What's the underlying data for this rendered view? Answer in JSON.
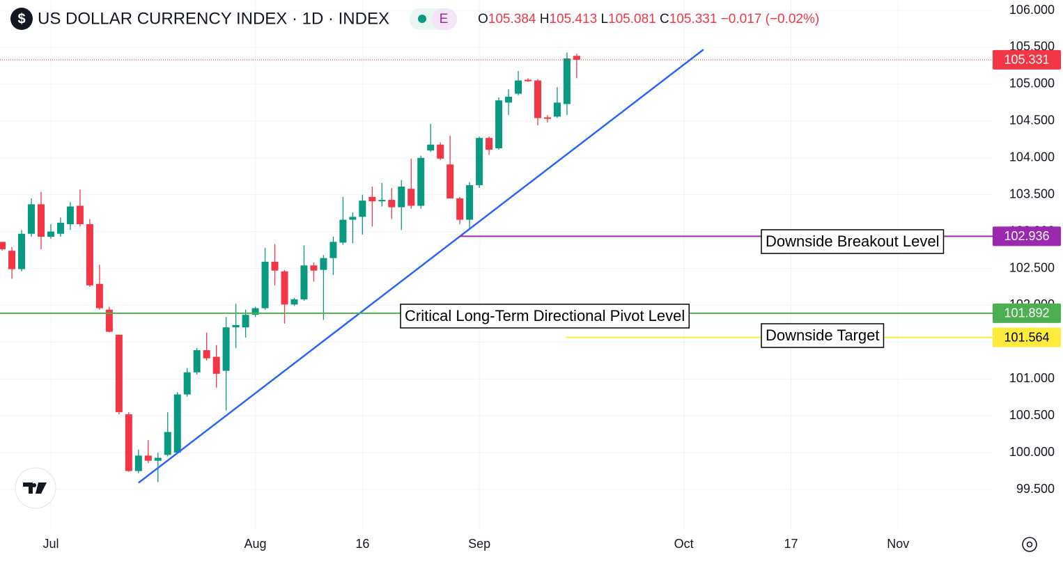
{
  "chart_data": {
    "type": "candlestick",
    "title": "US DOLLAR CURRENCY INDEX · 1D · INDEX",
    "badge": "E",
    "ohlc_labels": [
      "O",
      "H",
      "L",
      "C"
    ],
    "change": "−0.017 (−0.02%)",
    "up_color": "#089981",
    "down_color": "#f23645",
    "grid": true,
    "xlim": [
      -5.22,
      96.71
    ],
    "ylim": [
      98.962,
      106.142
    ],
    "xticks": [
      {
        "value": 0,
        "label": "Jul"
      },
      {
        "value": 21,
        "label": "Aug"
      },
      {
        "value": 32,
        "label": "16"
      },
      {
        "value": 44,
        "label": "Sep"
      },
      {
        "value": 65,
        "label": "Oct"
      },
      {
        "value": 76,
        "label": "17"
      },
      {
        "value": 87,
        "label": "Nov"
      }
    ],
    "yticks": [
      {
        "value": 99.5,
        "label": "99.500"
      },
      {
        "value": 100,
        "label": "100.000"
      },
      {
        "value": 100.5,
        "label": "100.500"
      },
      {
        "value": 101,
        "label": "101.000"
      },
      {
        "value": 101.5,
        "label": "101.500"
      },
      {
        "value": 102,
        "label": "102.000"
      },
      {
        "value": 102.5,
        "label": "102.500"
      },
      {
        "value": 103,
        "label": "103.000"
      },
      {
        "value": 103.5,
        "label": "103.500"
      },
      {
        "value": 104,
        "label": "104.000"
      },
      {
        "value": 104.5,
        "label": "104.500"
      },
      {
        "value": 105,
        "label": "105.000"
      },
      {
        "value": 105.5,
        "label": "105.500"
      },
      {
        "value": 106,
        "label": "106.000"
      }
    ],
    "x": [
      -5,
      -4,
      -3,
      -2,
      -1,
      0,
      1,
      2,
      3,
      4,
      5,
      6,
      7,
      8,
      9,
      10,
      11,
      12,
      13,
      14,
      15,
      16,
      17,
      18,
      19,
      20,
      21,
      22,
      23,
      24,
      25,
      26,
      27,
      28,
      29,
      30,
      31,
      32,
      33,
      34,
      35,
      36,
      37,
      38,
      39,
      40,
      41,
      42,
      43,
      44,
      45,
      46,
      47,
      48,
      49,
      50,
      51,
      52,
      53,
      54
    ],
    "open": [
      102.86,
      102.74,
      102.49,
      102.97,
      103.37,
      102.93,
      102.97,
      103.1,
      103.35,
      103.1,
      102.29,
      101.94,
      101.6,
      100.52,
      99.75,
      99.96,
      99.89,
      99.97,
      100.0,
      100.79,
      101.09,
      101.39,
      101.3,
      101.11,
      101.7,
      101.7,
      101.87,
      101.96,
      102.59,
      102.46,
      102.01,
      102.08,
      102.54,
      102.48,
      102.64,
      102.85,
      103.16,
      103.2,
      103.47,
      103.41,
      103.43,
      103.33,
      103.58,
      103.35,
      104.1,
      104.18,
      103.91,
      103.45,
      103.16,
      103.63,
      104.27,
      104.13,
      104.75,
      104.87,
      105.06,
      105.05,
      104.55,
      104.56,
      104.73,
      105.384
    ],
    "high": [
      102.86,
      102.79,
      103.02,
      103.45,
      103.54,
      103.1,
      103.19,
      103.4,
      103.57,
      103.17,
      102.55,
      101.98,
      101.6,
      100.55,
      100.04,
      100.17,
      100.0,
      100.55,
      100.82,
      101.15,
      101.42,
      101.63,
      101.46,
      101.84,
      102.02,
      101.94,
      101.98,
      102.78,
      102.83,
      102.48,
      102.1,
      102.81,
      102.58,
      102.68,
      102.93,
      103.47,
      103.26,
      103.5,
      103.61,
      103.66,
      103.59,
      103.7,
      103.99,
      104.03,
      104.46,
      104.21,
      104.3,
      103.47,
      103.67,
      104.29,
      104.29,
      104.82,
      104.93,
      105.18,
      105.08,
      105.07,
      104.58,
      104.96,
      105.43,
      105.413
    ],
    "low": [
      102.74,
      102.36,
      102.46,
      102.93,
      102.76,
      102.9,
      102.93,
      103.02,
      103.07,
      102.25,
      101.94,
      101.63,
      100.52,
      99.74,
      99.72,
      99.86,
      99.6,
      99.95,
      99.98,
      100.76,
      101.06,
      101.25,
      100.88,
      100.57,
      101.42,
      101.56,
      101.84,
      101.94,
      102.27,
      101.75,
      101.99,
      102.06,
      102.32,
      101.8,
      102.41,
      102.82,
      102.84,
      102.96,
      103.07,
      103.34,
      103.17,
      103.02,
      103.31,
      103.31,
      104.08,
      103.97,
      103.45,
      103.1,
      103.04,
      103.59,
      104.04,
      104.11,
      104.58,
      104.85,
      105.03,
      104.44,
      104.48,
      104.54,
      104.58,
      105.081
    ],
    "close": [
      102.76,
      102.49,
      102.97,
      103.37,
      102.93,
      103.0,
      103.12,
      103.34,
      103.1,
      102.27,
      101.96,
      101.64,
      100.55,
      99.75,
      99.96,
      99.89,
      99.93,
      100.28,
      100.79,
      101.09,
      101.39,
      101.28,
      101.07,
      101.7,
      101.73,
      101.87,
      101.96,
      102.59,
      102.47,
      102.01,
      102.08,
      102.54,
      102.47,
      102.64,
      102.86,
      103.16,
      103.2,
      103.42,
      103.41,
      103.43,
      103.33,
      103.61,
      103.35,
      104.0,
      104.18,
      103.99,
      103.45,
      103.16,
      103.63,
      104.27,
      104.11,
      104.78,
      104.83,
      105.05,
      105.04,
      104.54,
      104.53,
      104.75,
      105.35,
      105.331
    ],
    "trendline": {
      "x": [
        9,
        67.02
      ],
      "y": [
        99.59,
        105.47
      ],
      "color": "#2962ff"
    },
    "hlines": [
      {
        "value": 105.331,
        "color": "#f23645",
        "style": "dotted"
      },
      {
        "value": 102.936,
        "color": "#9c27b0",
        "from": 42,
        "label": "Downside Breakout Level"
      },
      {
        "value": 101.892,
        "color": "#4caf50",
        "label": "Critical Long-Term Directional Pivot Level"
      },
      {
        "value": 101.564,
        "color": "#ffeb3b",
        "from": 52.9,
        "label": "Downside Target"
      }
    ]
  }
}
